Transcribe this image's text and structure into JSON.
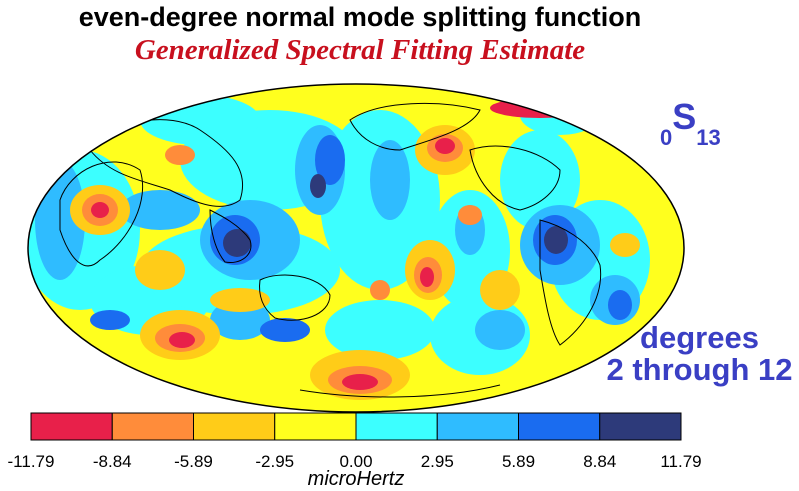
{
  "title": "even-degree normal mode splitting function",
  "subtitle": "Generalized Spectral Fitting Estimate",
  "mode": {
    "subscript_pre": "0",
    "letter": "S",
    "subscript_post": "13"
  },
  "degrees": {
    "line1": "degrees",
    "line2": "2 through 12"
  },
  "colorbar": {
    "unit": "microHertz",
    "ticks": [
      "-11.79",
      "-8.84",
      "-5.89",
      "-2.95",
      "0.00",
      "2.95",
      "5.89",
      "8.84",
      "11.79"
    ],
    "bins": [
      {
        "from": -11.79,
        "to": -8.84,
        "color": "#e8204a"
      },
      {
        "from": -8.84,
        "to": -5.89,
        "color": "#ff8c3a"
      },
      {
        "from": -5.89,
        "to": -2.95,
        "color": "#ffcc18"
      },
      {
        "from": -2.95,
        "to": 0.0,
        "color": "#ffff1e"
      },
      {
        "from": 0.0,
        "to": 2.95,
        "color": "#3cffff"
      },
      {
        "from": 2.95,
        "to": 5.89,
        "color": "#2fbcff"
      },
      {
        "from": 5.89,
        "to": 8.84,
        "color": "#1a6cf0"
      },
      {
        "from": 8.84,
        "to": 11.79,
        "color": "#2d3a7a"
      }
    ]
  },
  "map": {
    "projection": "Hammer-Aitoff (Pacific-centered)",
    "background_color": "#ffff1e"
  }
}
